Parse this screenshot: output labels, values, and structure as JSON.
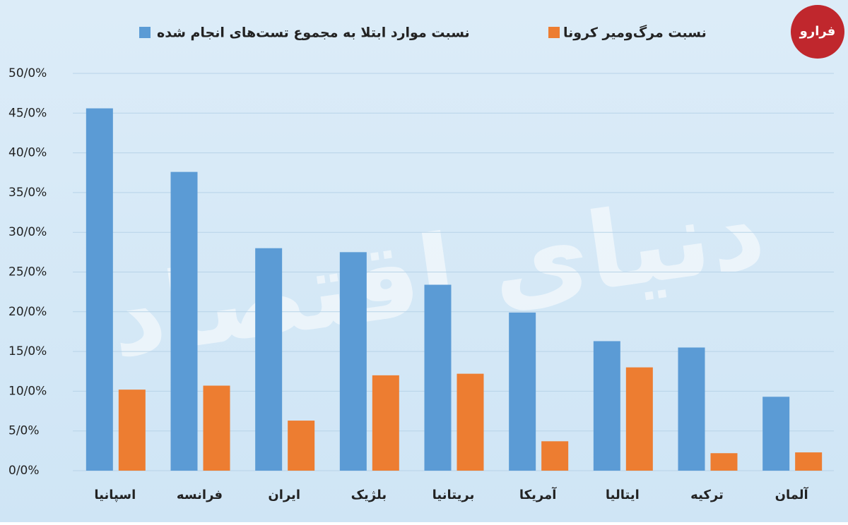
{
  "chart_data": {
    "type": "bar",
    "logo": "فرارو",
    "watermark": "دنیای اقتصاد",
    "categories": [
      "اسپانیا",
      "فرانسه",
      "ایران",
      "بلژیک",
      "بریتانیا",
      "آمریکا",
      "ایتالیا",
      "ترکیه",
      "آلمان"
    ],
    "series": [
      {
        "name": "نسبت موارد ابتلا به مجموع تست‌های انجام شده",
        "color": "#5b9bd5",
        "values": [
          45.6,
          37.6,
          28.0,
          27.5,
          23.4,
          19.9,
          16.3,
          15.5,
          9.3
        ]
      },
      {
        "name": "نسبت مرگ‌ومیر کرونا",
        "color": "#ed7d31",
        "values": [
          10.2,
          10.7,
          6.3,
          12.0,
          12.2,
          3.7,
          13.0,
          2.2,
          2.3
        ]
      }
    ],
    "ylim": [
      0,
      50
    ],
    "yticks": [
      {
        "value": 0,
        "label": "0/0%"
      },
      {
        "value": 5,
        "label": "5/0%"
      },
      {
        "value": 10,
        "label": "10/0%"
      },
      {
        "value": 15,
        "label": "15/0%"
      },
      {
        "value": 20,
        "label": "20/0%"
      },
      {
        "value": 25,
        "label": "25/0%"
      },
      {
        "value": 30,
        "label": "30/0%"
      },
      {
        "value": 35,
        "label": "35/0%"
      },
      {
        "value": 40,
        "label": "40/0%"
      },
      {
        "value": 45,
        "label": "45/0%"
      },
      {
        "value": 50,
        "label": "50/0%"
      }
    ],
    "grid": true
  }
}
